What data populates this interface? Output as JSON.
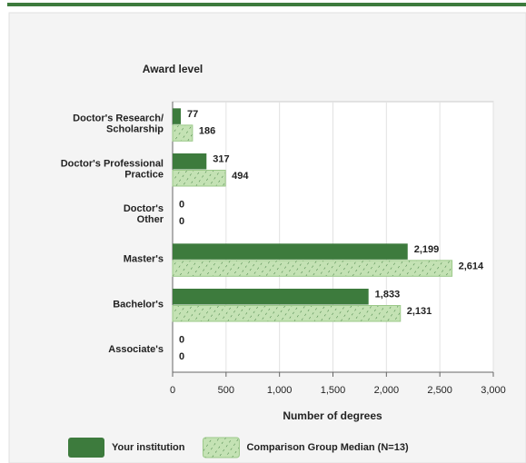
{
  "chart_data": {
    "type": "hbar",
    "y_axis_label": "Award level",
    "x_axis_label": "Number of degrees",
    "categories": [
      [
        "Doctor's Research/",
        "Scholarship"
      ],
      [
        "Doctor's Professional",
        "Practice"
      ],
      [
        "Doctor's",
        "Other"
      ],
      [
        "Master's"
      ],
      [
        "Bachelor's"
      ],
      [
        "Associate's"
      ]
    ],
    "series": [
      {
        "name": "Your institution",
        "color": "#3d7b3d",
        "hatch": false,
        "values": [
          77,
          317,
          0,
          2199,
          1833,
          0
        ],
        "value_labels": [
          "77",
          "317",
          "0",
          "2,199",
          "1,833",
          "0"
        ]
      },
      {
        "name": "Comparison Group Median (N=13)",
        "color": "#c4e2b4",
        "hatch": true,
        "values": [
          186,
          494,
          0,
          2614,
          2131,
          0
        ],
        "value_labels": [
          "186",
          "494",
          "0",
          "2,614",
          "2,131",
          "0"
        ]
      }
    ],
    "xlim": [
      0,
      3000
    ],
    "xticks": [
      0,
      500,
      {
        "value": 1000,
        "label": "1,000"
      },
      {
        "value": 1500,
        "label": "1,500"
      },
      {
        "value": 2000,
        "label": "2,000"
      },
      {
        "value": 2500,
        "label": "2,500"
      },
      {
        "value": 3000,
        "label": "3,000"
      }
    ],
    "grid": true
  }
}
